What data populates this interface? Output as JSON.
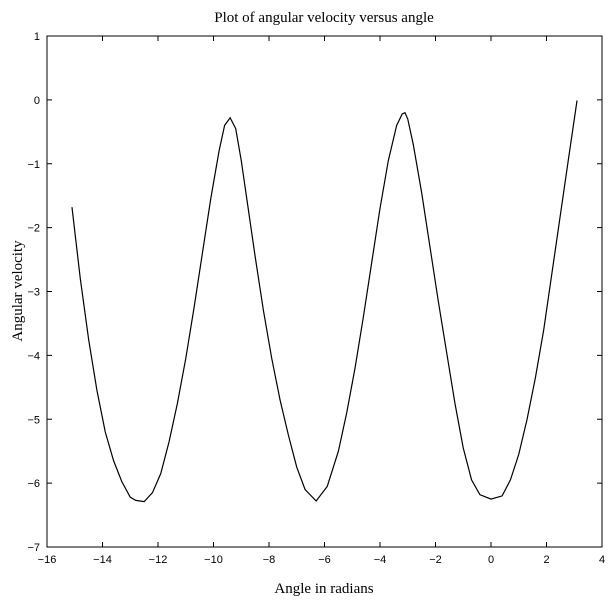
{
  "chart_data": {
    "type": "line",
    "title": "Plot of angular velocity versus angle",
    "xlabel": "Angle in radians",
    "ylabel": "Angular velocity",
    "xlim": [
      -16,
      4
    ],
    "ylim": [
      -7,
      1
    ],
    "xticks": [
      -16,
      -14,
      -12,
      -10,
      -8,
      -6,
      -4,
      -2,
      0,
      2,
      4
    ],
    "yticks": [
      -7,
      -6,
      -5,
      -4,
      -3,
      -2,
      -1,
      0,
      1
    ],
    "xtick_labels": [
      "−16",
      "−14",
      "−12",
      "−10",
      "−8",
      "−6",
      "−4",
      "−2",
      "0",
      "2",
      "4"
    ],
    "ytick_labels": [
      "−7",
      "−6",
      "−5",
      "−4",
      "−3",
      "−2",
      "−1",
      "0",
      "1"
    ],
    "grid": false,
    "legend": "none",
    "line_color": "#000000",
    "series": [
      {
        "x": [
          -15.1,
          -14.8,
          -14.5,
          -14.2,
          -13.9,
          -13.6,
          -13.3,
          -13.0,
          -12.8,
          -12.5,
          -12.2,
          -11.9,
          -11.6,
          -11.3,
          -11.0,
          -10.7,
          -10.4,
          -10.1,
          -9.8,
          -9.6,
          -9.4,
          -9.2,
          -9.0,
          -8.8,
          -8.5,
          -8.2,
          -7.9,
          -7.6,
          -7.3,
          -7.0,
          -6.7,
          -6.3,
          -5.9,
          -5.5,
          -5.2,
          -4.9,
          -4.6,
          -4.3,
          -4.0,
          -3.7,
          -3.4,
          -3.2,
          -3.1,
          -3.0,
          -2.8,
          -2.5,
          -2.2,
          -1.9,
          -1.6,
          -1.3,
          -1.0,
          -0.7,
          -0.4,
          0.0,
          0.4,
          0.7,
          1.0,
          1.3,
          1.6,
          1.9,
          2.2,
          2.5,
          2.8,
          3.1
        ],
        "y": [
          -1.68,
          -2.8,
          -3.75,
          -4.55,
          -5.2,
          -5.65,
          -5.98,
          -6.22,
          -6.27,
          -6.29,
          -6.15,
          -5.85,
          -5.35,
          -4.75,
          -4.05,
          -3.25,
          -2.4,
          -1.55,
          -0.8,
          -0.4,
          -0.28,
          -0.45,
          -0.95,
          -1.55,
          -2.45,
          -3.3,
          -4.05,
          -4.7,
          -5.25,
          -5.75,
          -6.1,
          -6.28,
          -6.05,
          -5.5,
          -4.9,
          -4.2,
          -3.4,
          -2.55,
          -1.7,
          -0.95,
          -0.4,
          -0.22,
          -0.2,
          -0.3,
          -0.7,
          -1.45,
          -2.3,
          -3.15,
          -3.95,
          -4.75,
          -5.45,
          -5.95,
          -6.18,
          -6.25,
          -6.2,
          -5.95,
          -5.55,
          -5.0,
          -4.35,
          -3.6,
          -2.7,
          -1.8,
          -0.9,
          -0.01
        ]
      }
    ]
  }
}
